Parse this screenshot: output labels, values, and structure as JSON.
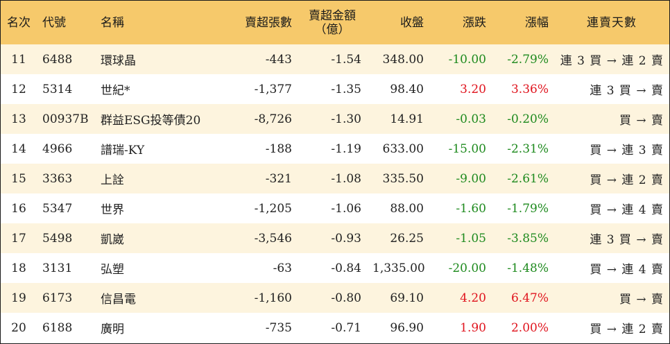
{
  "header": {
    "rank": "名次",
    "code": "代號",
    "name": "名稱",
    "sell_volume": "賣超張數",
    "sell_amount_line1": "賣超金額",
    "sell_amount_line2": "（億）",
    "close": "收盤",
    "change": "漲跌",
    "change_pct": "漲幅",
    "consecutive_days": "連賣天數"
  },
  "colors": {
    "header_bg": "#f6c96b",
    "stripe_bg": "#fdf4de",
    "up": "#e0141e",
    "down": "#1e8a1e"
  },
  "rows": [
    {
      "rank": "11",
      "code": "6488",
      "name": "環球晶",
      "sell_volume": "-443",
      "sell_amount": "-1.54",
      "close": "348.00",
      "change": "-10.00",
      "change_pct": "-2.79%",
      "direction": "down",
      "days": "連 3 買 → 連 2 賣"
    },
    {
      "rank": "12",
      "code": "5314",
      "name": "世紀*",
      "sell_volume": "-1,377",
      "sell_amount": "-1.35",
      "close": "98.40",
      "change": "3.20",
      "change_pct": "3.36%",
      "direction": "up",
      "days": "連 3 買 → 賣"
    },
    {
      "rank": "13",
      "code": "00937B",
      "name": "群益ESG投等債20",
      "sell_volume": "-8,726",
      "sell_amount": "-1.30",
      "close": "14.91",
      "change": "-0.03",
      "change_pct": "-0.20%",
      "direction": "down",
      "days": "買 → 賣"
    },
    {
      "rank": "14",
      "code": "4966",
      "name": "譜瑞-KY",
      "sell_volume": "-188",
      "sell_amount": "-1.19",
      "close": "633.00",
      "change": "-15.00",
      "change_pct": "-2.31%",
      "direction": "down",
      "days": "買 → 連 3 賣"
    },
    {
      "rank": "15",
      "code": "3363",
      "name": "上詮",
      "sell_volume": "-321",
      "sell_amount": "-1.08",
      "close": "335.50",
      "change": "-9.00",
      "change_pct": "-2.61%",
      "direction": "down",
      "days": "買 → 連 2 賣"
    },
    {
      "rank": "16",
      "code": "5347",
      "name": "世界",
      "sell_volume": "-1,205",
      "sell_amount": "-1.06",
      "close": "88.00",
      "change": "-1.60",
      "change_pct": "-1.79%",
      "direction": "down",
      "days": "買 → 連 4 賣"
    },
    {
      "rank": "17",
      "code": "5498",
      "name": "凱崴",
      "sell_volume": "-3,546",
      "sell_amount": "-0.93",
      "close": "26.25",
      "change": "-1.05",
      "change_pct": "-3.85%",
      "direction": "down",
      "days": "連 3 買 → 賣"
    },
    {
      "rank": "18",
      "code": "3131",
      "name": "弘塑",
      "sell_volume": "-63",
      "sell_amount": "-0.84",
      "close": "1,335.00",
      "change": "-20.00",
      "change_pct": "-1.48%",
      "direction": "down",
      "days": "買 → 連 4 賣"
    },
    {
      "rank": "19",
      "code": "6173",
      "name": "信昌電",
      "sell_volume": "-1,160",
      "sell_amount": "-0.80",
      "close": "69.10",
      "change": "4.20",
      "change_pct": "6.47%",
      "direction": "up",
      "days": "買 → 賣"
    },
    {
      "rank": "20",
      "code": "6188",
      "name": "廣明",
      "sell_volume": "-735",
      "sell_amount": "-0.71",
      "close": "96.90",
      "change": "1.90",
      "change_pct": "2.00%",
      "direction": "up",
      "days": "買 → 連 2 賣"
    }
  ]
}
